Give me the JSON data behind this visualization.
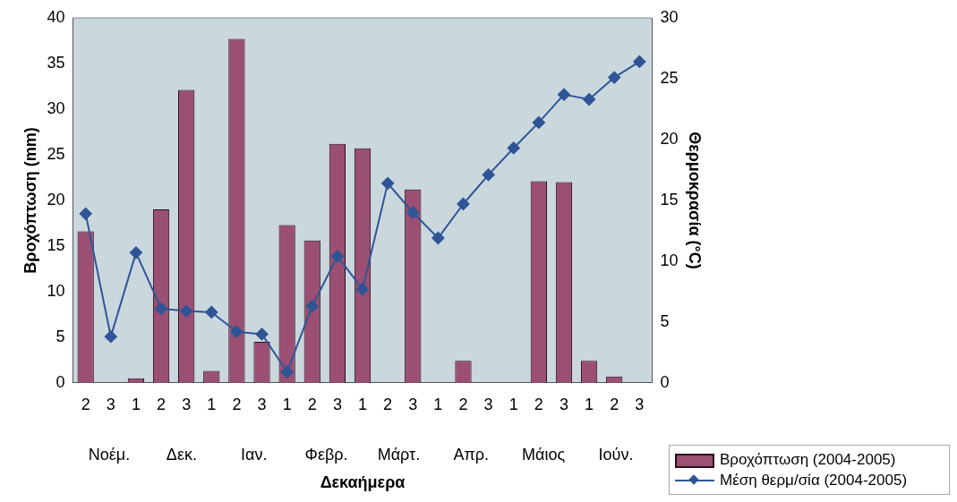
{
  "chart_data": {
    "type": "bar",
    "xlabel": "Δεκαήμερα",
    "ylabel": "Βροχόπτωση (mm)",
    "y2label": "Θερμοκρασία (°C)",
    "categories": [
      "2",
      "3",
      "1",
      "2",
      "3",
      "1",
      "2",
      "3",
      "1",
      "2",
      "3",
      "1",
      "2",
      "3",
      "1",
      "2",
      "3",
      "1",
      "2",
      "3",
      "1",
      "2",
      "3"
    ],
    "series": [
      {
        "name": "Βροχόπτωση (2004-2005)",
        "color": "#9b4f72",
        "values": [
          16.6,
          0,
          0.5,
          19.0,
          32.1,
          1.3,
          37.7,
          4.5,
          17.3,
          15.6,
          26.2,
          25.7,
          0,
          21.2,
          0,
          2.4,
          0,
          0,
          22.1,
          22.0,
          2.4,
          0.7,
          0
        ]
      },
      {
        "name": "Μέση θερμ/σία (2004-2005)",
        "type": "line",
        "axis": "y2",
        "color": "#2f5597",
        "marker": "diamond",
        "values": [
          13.9,
          3.8,
          10.7,
          6.1,
          5.9,
          5.8,
          4.2,
          4.0,
          0.9,
          6.3,
          10.4,
          7.7,
          16.4,
          14.0,
          11.9,
          14.7,
          17.1,
          19.3,
          21.4,
          23.7,
          23.3,
          25.1,
          26.4
        ]
      }
    ],
    "annotations": [
      "Νοέμ.",
      "Δεκ.",
      "Ιαν.",
      "Φεβρ.",
      "Μάρτ.",
      "Απρ.",
      "Μάιος",
      "Ιούν."
    ],
    "ylim": [
      0,
      40
    ],
    "yticks": [
      0,
      5,
      10,
      15,
      20,
      25,
      30,
      35,
      40
    ],
    "y2lim": [
      0,
      30
    ],
    "y2ticks": [
      0,
      5,
      10,
      15,
      20,
      25,
      30
    ],
    "grid": false,
    "legend": "bottom right"
  }
}
